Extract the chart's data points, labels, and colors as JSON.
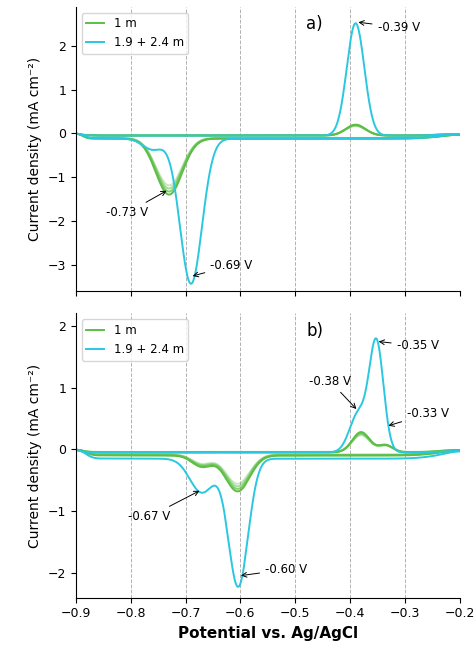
{
  "title": "",
  "xlabel": "Potential vs. Ag/AgCl",
  "ylabel": "Current density (mA cm⁻²)",
  "xlim": [
    -0.9,
    -0.2
  ],
  "panel_a": {
    "ylim": [
      -3.6,
      2.9
    ],
    "yticks": [
      -3,
      -2,
      -1,
      0,
      1,
      2
    ],
    "label": "a)",
    "green_label": "1 m",
    "cyan_label": "1.9 + 2.4 m",
    "vlines": [
      -0.8,
      -0.7,
      -0.6,
      -0.5,
      -0.4,
      -0.3
    ]
  },
  "panel_b": {
    "ylim": [
      -2.4,
      2.2
    ],
    "yticks": [
      -2,
      -1,
      0,
      1,
      2
    ],
    "label": "b)",
    "green_label": "1 m",
    "cyan_label": "1.9 + 2.4 m",
    "vlines": [
      -0.8,
      -0.7,
      -0.6,
      -0.5,
      -0.4,
      -0.3
    ]
  },
  "color_green": "#5dbe45",
  "color_cyan": "#29c8e0",
  "background": "#ffffff",
  "linewidth": 1.4,
  "fontsize_label": 10,
  "fontsize_annot": 8.5,
  "fontsize_legend": 8.5,
  "fontsize_panel": 12,
  "xticks": [
    -0.9,
    -0.8,
    -0.7,
    -0.6,
    -0.5,
    -0.4,
    -0.3,
    -0.2
  ]
}
